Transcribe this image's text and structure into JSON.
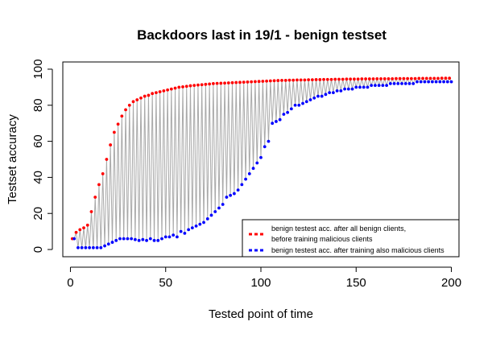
{
  "chart_data": {
    "type": "scatter",
    "title": "Backdoors last in 19/1 - benign testset",
    "xlabel": "Tested point of time",
    "ylabel": "Testset accuracy",
    "xlim": [
      -4,
      204
    ],
    "ylim": [
      -4,
      104
    ],
    "x_ticks": [
      0,
      50,
      100,
      150,
      200
    ],
    "y_ticks": [
      0,
      20,
      40,
      60,
      80,
      100
    ],
    "grid": false,
    "legend_position": "bottom-right",
    "connector_color": "#a9a9a9",
    "x_step": 2,
    "series": [
      {
        "name": "benign testest acc. after all benign clients,",
        "name_line2": "before training malicious clients",
        "color": "#ff0000",
        "x": [
          1,
          3,
          5,
          7,
          9,
          11,
          13,
          15,
          17,
          19,
          21,
          23,
          25,
          27,
          29,
          31,
          33,
          35,
          37,
          39,
          41,
          43,
          45,
          47,
          49,
          51,
          53,
          55,
          57,
          59,
          61,
          63,
          65,
          67,
          69,
          71,
          73,
          75,
          77,
          79,
          81,
          83,
          85,
          87,
          89,
          91,
          93,
          95,
          97,
          99,
          101,
          103,
          105,
          107,
          109,
          111,
          113,
          115,
          117,
          119,
          121,
          123,
          125,
          127,
          129,
          131,
          133,
          135,
          137,
          139,
          141,
          143,
          145,
          147,
          149,
          151,
          153,
          155,
          157,
          159,
          161,
          163,
          165,
          167,
          169,
          171,
          173,
          175,
          177,
          179,
          181,
          183,
          185,
          187,
          189,
          191,
          193,
          195,
          197,
          199
        ],
        "y": [
          6,
          9.5,
          11,
          12,
          13.5,
          21,
          29,
          36,
          42,
          50,
          58,
          65,
          69.5,
          74,
          77.5,
          80,
          82,
          83,
          84,
          85,
          85.5,
          86.5,
          87,
          87.5,
          88,
          88.5,
          89,
          89.5,
          90,
          90.2,
          90.5,
          90.8,
          91,
          91.2,
          91.4,
          91.6,
          91.8,
          92,
          92.1,
          92.2,
          92.3,
          92.4,
          92.5,
          92.6,
          92.7,
          92.8,
          92.9,
          93,
          93.1,
          93.2,
          93.3,
          93.4,
          93.5,
          93.6,
          93.7,
          93.8,
          93.8,
          93.9,
          93.9,
          94,
          94,
          94,
          94.1,
          94.1,
          94.2,
          94.2,
          94.3,
          94.3,
          94.3,
          94.4,
          94.4,
          94.4,
          94.5,
          94.5,
          94.5,
          94.5,
          94.6,
          94.6,
          94.6,
          94.6,
          94.7,
          94.7,
          94.7,
          94.7,
          94.7,
          94.8,
          94.8,
          94.8,
          94.8,
          94.8,
          94.8,
          94.9,
          94.9,
          94.9,
          94.9,
          94.9,
          94.9,
          95,
          95,
          95
        ]
      },
      {
        "name": "benign testest acc. after training also malicious clients",
        "color": "#0000ff",
        "x": [
          2,
          4,
          6,
          8,
          10,
          12,
          14,
          16,
          18,
          20,
          22,
          24,
          26,
          28,
          30,
          32,
          34,
          36,
          38,
          40,
          42,
          44,
          46,
          48,
          50,
          52,
          54,
          56,
          58,
          60,
          62,
          64,
          66,
          68,
          70,
          72,
          74,
          76,
          78,
          80,
          82,
          84,
          86,
          88,
          90,
          92,
          94,
          96,
          98,
          100,
          102,
          104,
          106,
          108,
          110,
          112,
          114,
          116,
          118,
          120,
          122,
          124,
          126,
          128,
          130,
          132,
          134,
          136,
          138,
          140,
          142,
          144,
          146,
          148,
          150,
          152,
          154,
          156,
          158,
          160,
          162,
          164,
          166,
          168,
          170,
          172,
          174,
          176,
          178,
          180,
          182,
          184,
          186,
          188,
          190,
          192,
          194,
          196,
          198,
          200
        ],
        "y": [
          6,
          1,
          1,
          1,
          1,
          1,
          1,
          1,
          2,
          3,
          4,
          5,
          6,
          6,
          6,
          6,
          5.5,
          5,
          5.5,
          5,
          6,
          5,
          5,
          6,
          7,
          7,
          8,
          7,
          10,
          9,
          11,
          12,
          13,
          14,
          15,
          17,
          19,
          21,
          23,
          25,
          29,
          30,
          31,
          33,
          36,
          39,
          42,
          45,
          48,
          51,
          57,
          60,
          70,
          71,
          72,
          75,
          76,
          78,
          80,
          80,
          81,
          82,
          83,
          84,
          85,
          85,
          86,
          87,
          87,
          88,
          88,
          89,
          89,
          89,
          90,
          90,
          90,
          90,
          91,
          91,
          91,
          91,
          91,
          92,
          92,
          92,
          92,
          92,
          92,
          92,
          93,
          93,
          93,
          93,
          93,
          93,
          93,
          93,
          93,
          93
        ]
      }
    ]
  }
}
